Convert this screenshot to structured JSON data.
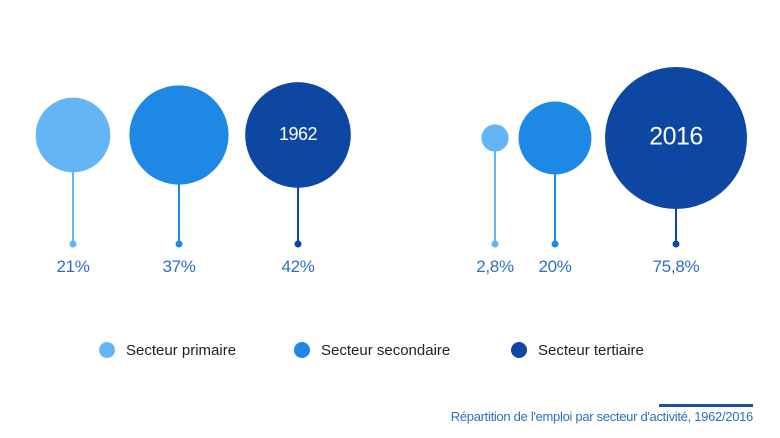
{
  "chart_data": [
    {
      "type": "bubble",
      "title": "1962",
      "categories": [
        "Secteur primaire",
        "Secteur secondaire",
        "Secteur tertiaire"
      ],
      "values": [
        21,
        37,
        42
      ],
      "value_labels": [
        "21%",
        "37%",
        "42%"
      ],
      "unit": "%"
    },
    {
      "type": "bubble",
      "title": "2016",
      "categories": [
        "Secteur primaire",
        "Secteur secondaire",
        "Secteur tertiaire"
      ],
      "values": [
        2.8,
        20,
        75.8
      ],
      "value_labels": [
        "2,8%",
        "20%",
        "75,8%"
      ],
      "unit": "%"
    }
  ],
  "legend": [
    {
      "label": "Secteur primaire",
      "color": "#64b5f6"
    },
    {
      "label": "Secteur secondaire",
      "color": "#1e88e5"
    },
    {
      "label": "Secteur tertiaire",
      "color": "#0d47a1"
    }
  ],
  "colors": {
    "primaire": "#64b5f6",
    "secondaire": "#1e88e5",
    "tertiaire": "#0d47a1",
    "text": "#2d6fc0"
  },
  "caption": "Répartition de l'emploi par secteur d'activité, 1962/2016"
}
